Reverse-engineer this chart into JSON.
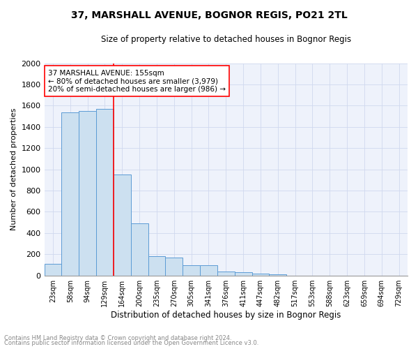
{
  "title": "37, MARSHALL AVENUE, BOGNOR REGIS, PO21 2TL",
  "subtitle": "Size of property relative to detached houses in Bognor Regis",
  "xlabel": "Distribution of detached houses by size in Bognor Regis",
  "ylabel": "Number of detached properties",
  "bins": [
    "23sqm",
    "58sqm",
    "94sqm",
    "129sqm",
    "164sqm",
    "200sqm",
    "235sqm",
    "270sqm",
    "305sqm",
    "341sqm",
    "376sqm",
    "411sqm",
    "447sqm",
    "482sqm",
    "517sqm",
    "553sqm",
    "588sqm",
    "623sqm",
    "659sqm",
    "694sqm",
    "729sqm"
  ],
  "values": [
    110,
    1540,
    1550,
    1570,
    950,
    490,
    185,
    170,
    100,
    95,
    38,
    28,
    18,
    12,
    0,
    0,
    0,
    0,
    0,
    0,
    0
  ],
  "bar_color": "#cce0f0",
  "bar_edge_color": "#5b9bd5",
  "marker_color": "red",
  "annotation_text": "37 MARSHALL AVENUE: 155sqm\n← 80% of detached houses are smaller (3,979)\n20% of semi-detached houses are larger (986) →",
  "annotation_box_color": "white",
  "annotation_box_edge": "red",
  "ylim": [
    0,
    2000
  ],
  "yticks": [
    0,
    200,
    400,
    600,
    800,
    1000,
    1200,
    1400,
    1600,
    1800,
    2000
  ],
  "footnote1": "Contains HM Land Registry data © Crown copyright and database right 2024.",
  "footnote2": "Contains public sector information licensed under the Open Government Licence v3.0.",
  "bg_color": "#eef2fb",
  "grid_color": "#d0d8ee"
}
